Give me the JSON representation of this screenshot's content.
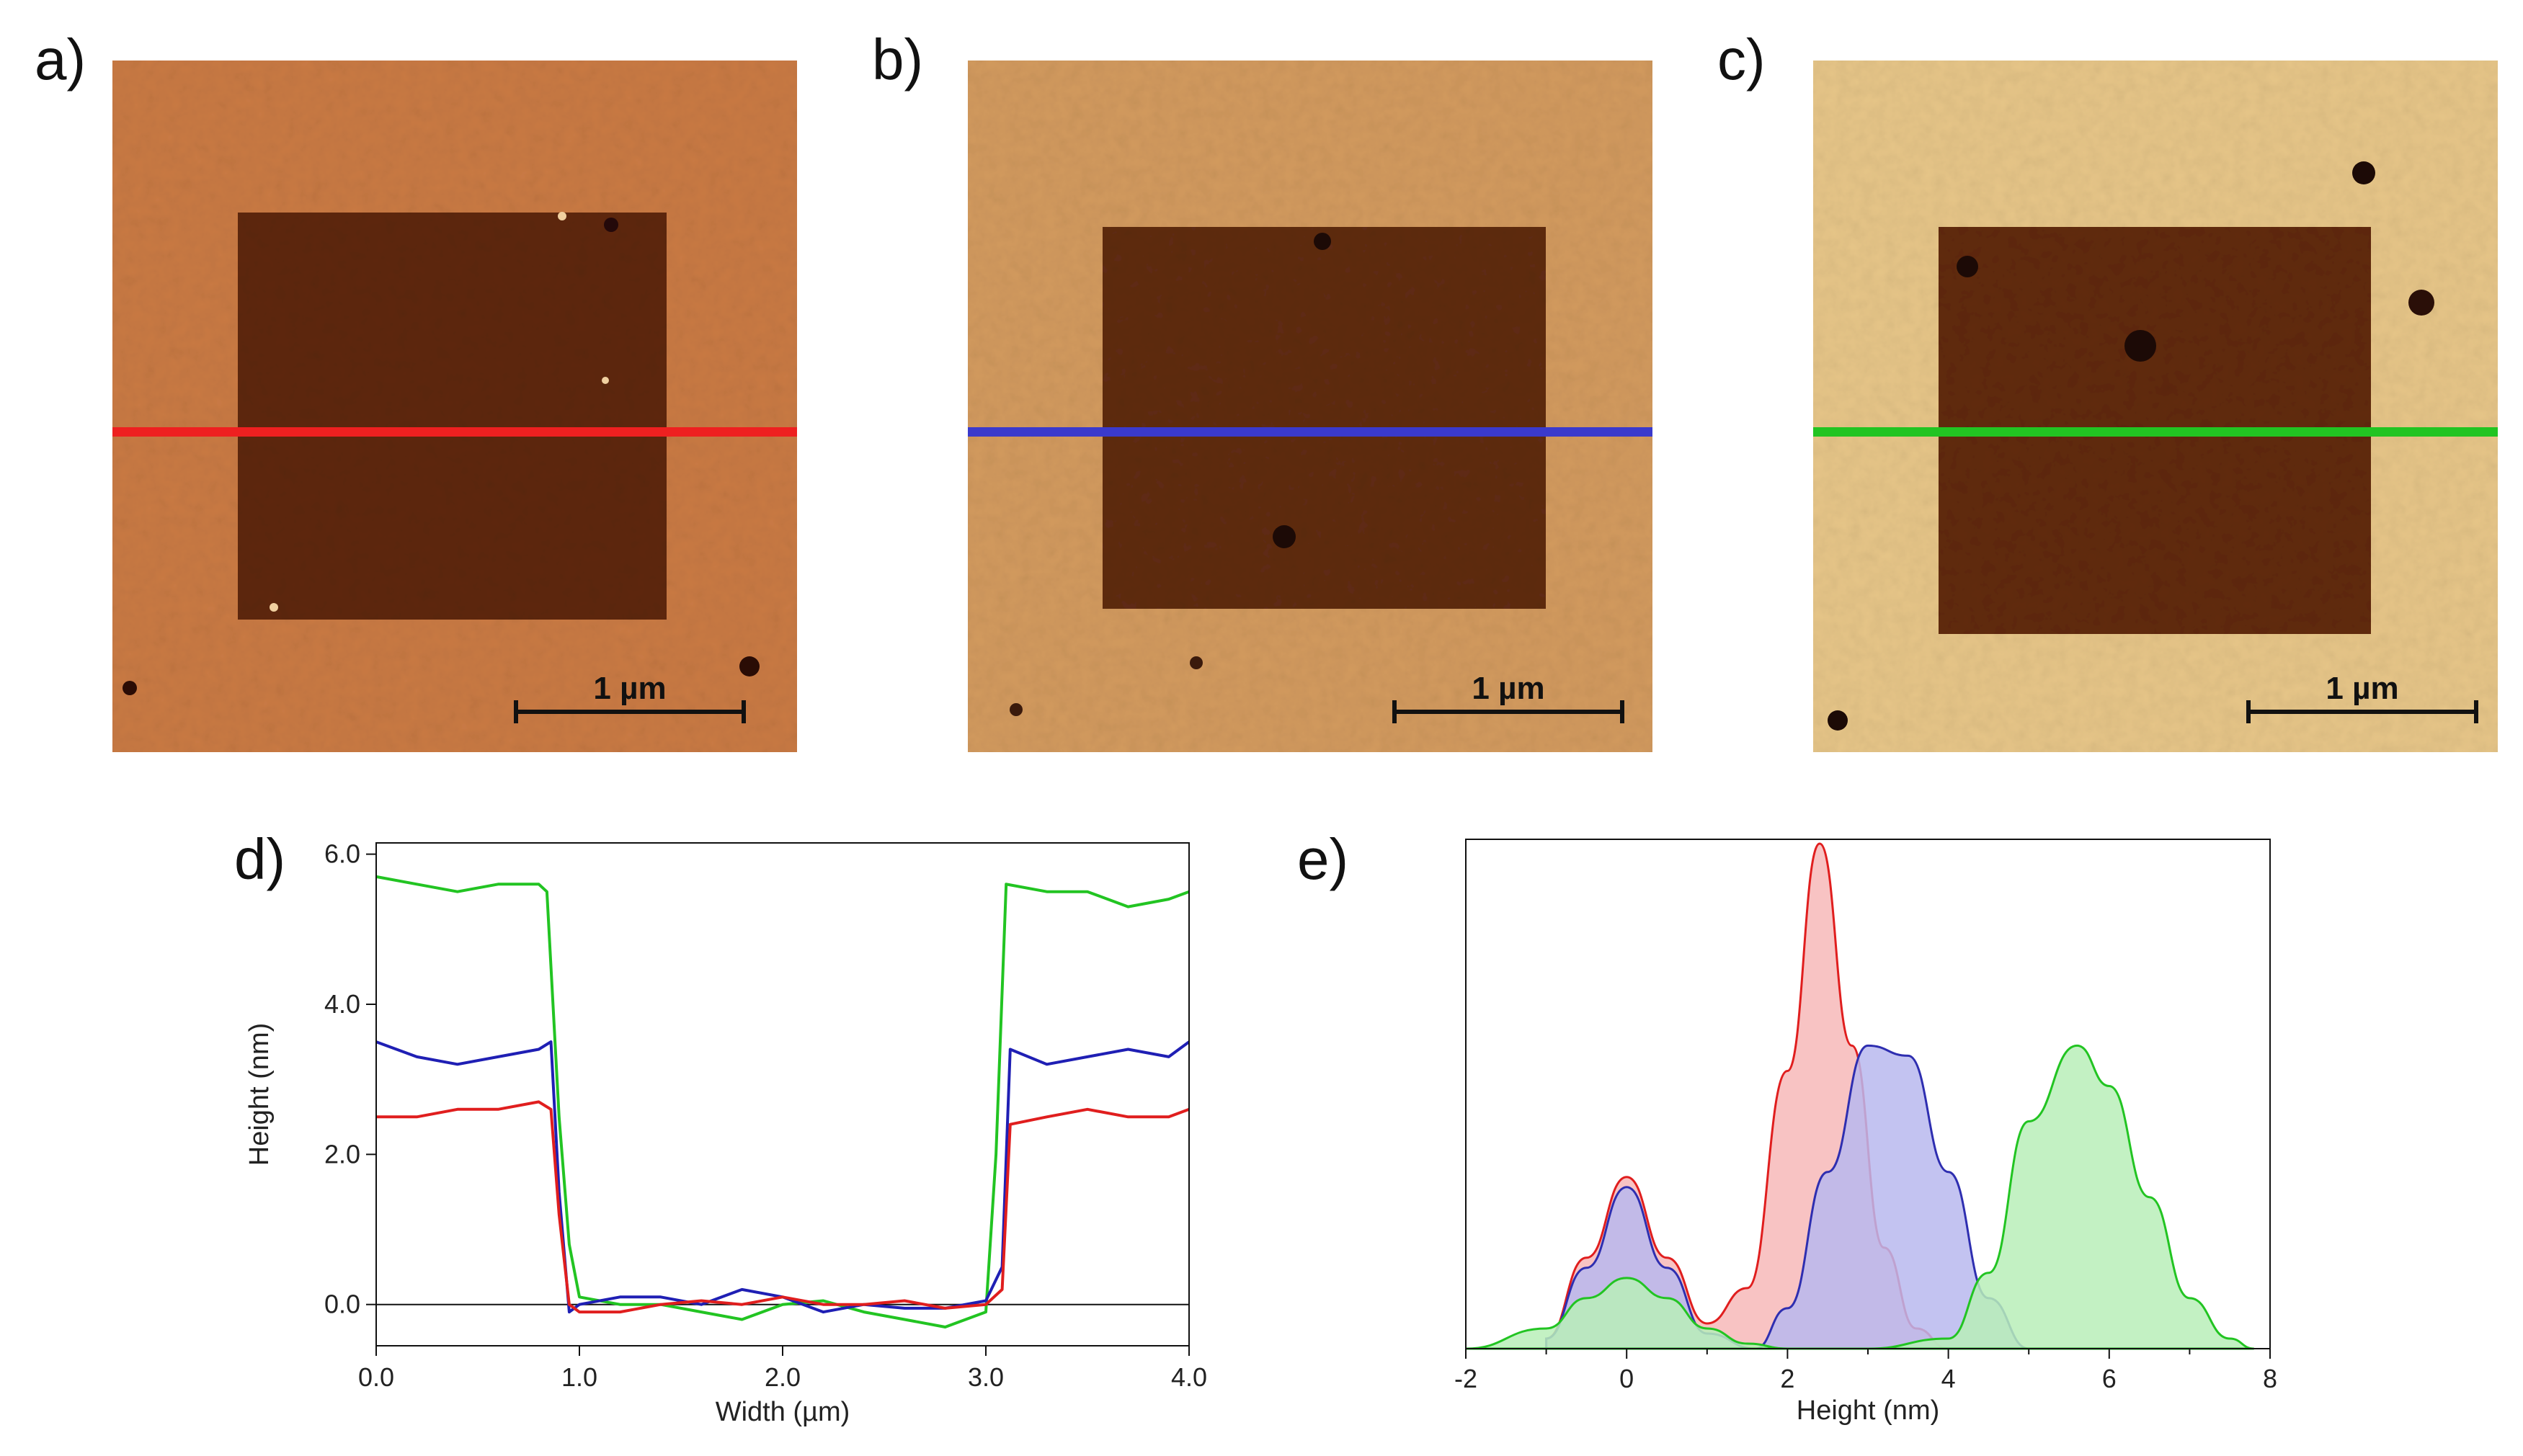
{
  "panels": {
    "a": {
      "label": "a)",
      "scale_text": "1 µm",
      "line_color": "#ee2020"
    },
    "b": {
      "label": "b)",
      "scale_text": "1 µm",
      "line_color": "#3a3acc"
    },
    "c": {
      "label": "c)",
      "scale_text": "1 µm",
      "line_color": "#22c422"
    }
  },
  "chart_data": [
    {
      "id": "d",
      "panel_label": "d)",
      "type": "line",
      "xlabel": "Width (µm)",
      "ylabel": "Height (nm)",
      "xlim": [
        0.0,
        4.0
      ],
      "ylim": [
        -0.55,
        6.15
      ],
      "xticks": [
        "0.0",
        "1.0",
        "2.0",
        "3.0",
        "4.0"
      ],
      "yticks": [
        "0.0",
        "2.0",
        "4.0",
        "6.0"
      ],
      "zero_line": true,
      "series": [
        {
          "name": "green",
          "color": "#22c422",
          "x": [
            0.0,
            0.2,
            0.4,
            0.6,
            0.8,
            0.84,
            0.9,
            0.95,
            1.0,
            1.2,
            1.4,
            1.6,
            1.8,
            2.0,
            2.2,
            2.4,
            2.6,
            2.8,
            3.0,
            3.05,
            3.1,
            3.3,
            3.5,
            3.7,
            3.9,
            4.0
          ],
          "values": [
            5.7,
            5.6,
            5.5,
            5.6,
            5.6,
            5.5,
            2.5,
            0.8,
            0.1,
            0.0,
            0.0,
            -0.1,
            -0.2,
            0.0,
            0.05,
            -0.1,
            -0.2,
            -0.3,
            -0.1,
            2.0,
            5.6,
            5.5,
            5.5,
            5.3,
            5.4,
            5.5
          ]
        },
        {
          "name": "blue",
          "color": "#1f1fb4",
          "x": [
            0.0,
            0.2,
            0.4,
            0.6,
            0.8,
            0.86,
            0.9,
            0.95,
            1.0,
            1.2,
            1.4,
            1.6,
            1.8,
            2.0,
            2.2,
            2.4,
            2.6,
            2.8,
            3.0,
            3.08,
            3.12,
            3.3,
            3.5,
            3.7,
            3.9,
            4.0
          ],
          "values": [
            3.5,
            3.3,
            3.2,
            3.3,
            3.4,
            3.5,
            1.5,
            -0.1,
            0.0,
            0.1,
            0.1,
            0.0,
            0.2,
            0.1,
            -0.1,
            0.0,
            -0.05,
            -0.05,
            0.05,
            0.5,
            3.4,
            3.2,
            3.3,
            3.4,
            3.3,
            3.5
          ]
        },
        {
          "name": "red",
          "color": "#e01e1e",
          "x": [
            0.0,
            0.2,
            0.4,
            0.6,
            0.8,
            0.86,
            0.9,
            0.95,
            1.0,
            1.2,
            1.4,
            1.6,
            1.8,
            2.0,
            2.2,
            2.4,
            2.6,
            2.8,
            3.0,
            3.08,
            3.12,
            3.3,
            3.5,
            3.7,
            3.9,
            4.0
          ],
          "values": [
            2.5,
            2.5,
            2.6,
            2.6,
            2.7,
            2.6,
            1.2,
            0.0,
            -0.1,
            -0.1,
            0.0,
            0.05,
            0.0,
            0.1,
            0.0,
            0.0,
            0.05,
            -0.05,
            0.0,
            0.2,
            2.4,
            2.5,
            2.6,
            2.5,
            2.5,
            2.6
          ]
        }
      ]
    },
    {
      "id": "e",
      "panel_label": "e)",
      "type": "area",
      "xlabel": "Height (nm)",
      "ylabel": "",
      "xlim": [
        -2,
        8
      ],
      "ylim": [
        0,
        1.0
      ],
      "xticks": [
        "-2",
        "0",
        "2",
        "4",
        "6",
        "8"
      ],
      "series": [
        {
          "name": "red",
          "color": "#e01e1e",
          "fill": "#f7b8b8",
          "x": [
            -1.0,
            -0.5,
            0.0,
            0.5,
            1.0,
            1.5,
            2.0,
            2.4,
            2.8,
            3.2,
            3.6,
            4.0
          ],
          "values": [
            0.02,
            0.18,
            0.34,
            0.18,
            0.05,
            0.12,
            0.55,
            1.0,
            0.6,
            0.2,
            0.04,
            0.0
          ]
        },
        {
          "name": "blue",
          "color": "#2e2eb0",
          "fill": "#b8b8ee",
          "x": [
            -1.0,
            -0.5,
            0.0,
            0.5,
            1.0,
            1.6,
            2.0,
            2.5,
            3.0,
            3.5,
            4.0,
            4.5,
            5.0
          ],
          "values": [
            0.02,
            0.16,
            0.32,
            0.16,
            0.03,
            0.0,
            0.08,
            0.35,
            0.6,
            0.58,
            0.35,
            0.1,
            0.0
          ]
        },
        {
          "name": "green",
          "color": "#22c422",
          "fill": "#b8eeb8",
          "x": [
            -2.0,
            -1.0,
            -0.5,
            0.0,
            0.5,
            1.0,
            1.5,
            2.0,
            3.0,
            4.0,
            4.5,
            5.0,
            5.6,
            6.0,
            6.5,
            7.0,
            7.5,
            7.8
          ],
          "values": [
            0.0,
            0.04,
            0.1,
            0.14,
            0.1,
            0.04,
            0.01,
            0.0,
            0.0,
            0.02,
            0.15,
            0.45,
            0.6,
            0.52,
            0.3,
            0.1,
            0.02,
            0.0
          ]
        }
      ]
    }
  ]
}
